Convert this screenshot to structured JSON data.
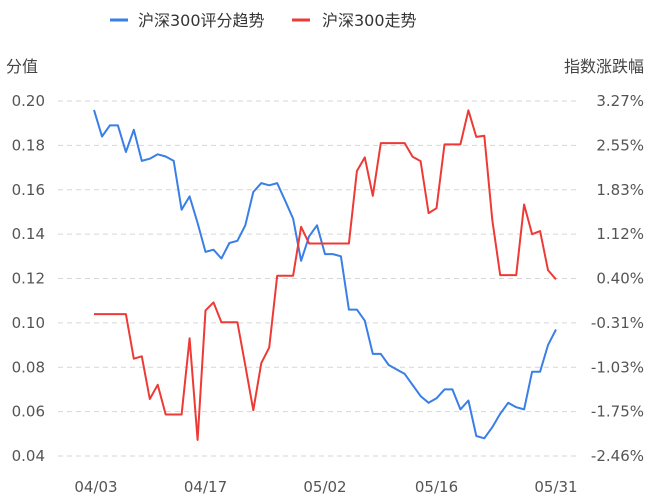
{
  "chart_data": {
    "type": "line",
    "legend_position": "top",
    "grid": true,
    "colors": {
      "score": "#3a7ee6",
      "index": "#ee3a36"
    },
    "left_axis": {
      "name": "分值",
      "ylim": [
        0.04,
        0.2
      ],
      "ticks": [
        "0.20",
        "0.18",
        "0.16",
        "0.14",
        "0.12",
        "0.10",
        "0.08",
        "0.06",
        "0.04"
      ]
    },
    "right_axis": {
      "name": "指数涨跌幅",
      "ylim": [
        -2.46,
        3.27
      ],
      "ticks": [
        "3.27%",
        "2.55%",
        "1.83%",
        "1.12%",
        "0.40%",
        "-0.31%",
        "-1.03%",
        "-1.75%",
        "-2.46%"
      ]
    },
    "xtick_labels": [
      "04/03",
      "04/17",
      "05/02",
      "05/16",
      "05/31"
    ],
    "x": [
      "04/03",
      "04/04",
      "04/05",
      "04/06",
      "04/07",
      "04/08",
      "04/09",
      "04/10",
      "04/11",
      "04/12",
      "04/13",
      "04/14",
      "04/15",
      "04/16",
      "04/17",
      "04/18",
      "04/19",
      "04/20",
      "04/21",
      "04/22",
      "04/23",
      "04/24",
      "04/25",
      "04/26",
      "04/27",
      "04/28",
      "04/29",
      "04/30",
      "05/01",
      "05/02",
      "05/03",
      "05/04",
      "05/05",
      "05/06",
      "05/07",
      "05/08",
      "05/09",
      "05/10",
      "05/11",
      "05/12",
      "05/13",
      "05/14",
      "05/15",
      "05/16",
      "05/17",
      "05/18",
      "05/19",
      "05/20",
      "05/21",
      "05/22",
      "05/23",
      "05/24",
      "05/25",
      "05/26",
      "05/27",
      "05/28",
      "05/29",
      "05/30",
      "05/31"
    ],
    "series": [
      {
        "name": "沪深300评分趋势",
        "axis": "left",
        "values": [
          0.196,
          0.184,
          0.189,
          0.189,
          0.177,
          0.187,
          0.173,
          0.174,
          0.176,
          0.175,
          0.173,
          0.151,
          0.157,
          0.145,
          0.132,
          0.133,
          0.129,
          0.136,
          0.137,
          0.144,
          0.159,
          0.163,
          0.162,
          0.163,
          0.155,
          0.147,
          0.128,
          0.139,
          0.144,
          0.131,
          0.131,
          0.13,
          0.106,
          0.106,
          0.101,
          0.086,
          0.086,
          0.081,
          0.079,
          0.077,
          0.072,
          0.067,
          0.064,
          0.066,
          0.07,
          0.07,
          0.061,
          0.065,
          0.049,
          0.048,
          0.053,
          0.059,
          0.064,
          0.062,
          0.061,
          0.078,
          0.078,
          0.09,
          0.097
        ]
      },
      {
        "name": "沪深300走势",
        "axis": "right",
        "values": [
          -0.17,
          -0.17,
          -0.17,
          -0.17,
          -0.17,
          -0.89,
          -0.85,
          -1.54,
          -1.31,
          -1.79,
          -1.79,
          -1.79,
          -0.56,
          -2.2,
          -0.11,
          0.02,
          -0.3,
          -0.3,
          -0.3,
          -1.0,
          -1.72,
          -0.96,
          -0.71,
          0.45,
          0.45,
          0.45,
          1.24,
          0.97,
          0.97,
          0.97,
          0.97,
          0.97,
          0.97,
          2.14,
          2.36,
          1.74,
          2.59,
          2.59,
          2.59,
          2.59,
          2.37,
          2.3,
          1.46,
          1.54,
          2.57,
          2.57,
          2.57,
          3.12,
          2.69,
          2.71,
          1.35,
          0.46,
          0.46,
          0.46,
          1.6,
          1.12,
          1.17,
          0.54,
          0.39
        ]
      }
    ]
  }
}
